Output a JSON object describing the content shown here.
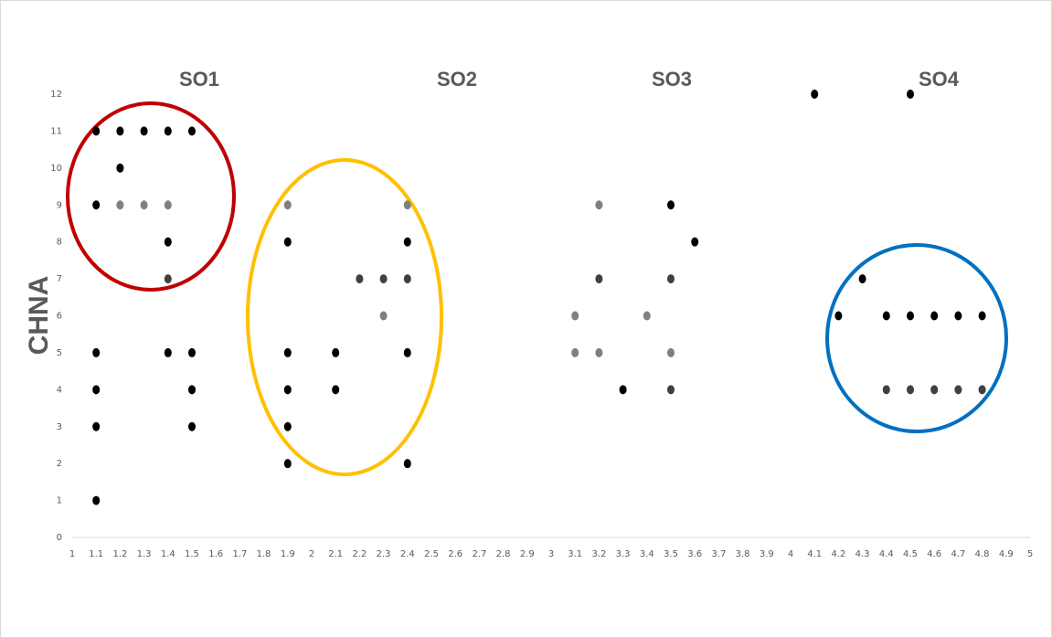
{
  "chart_data": {
    "type": "scatter",
    "annotations": [
      "SO1",
      "SO2",
      "SO3",
      "SO4"
    ],
    "y_label": "CHNA",
    "x": [
      1.1,
      1.1,
      1.1,
      1.1,
      1.1,
      1.1,
      1.2,
      1.2,
      1.2,
      1.3,
      1.3,
      1.4,
      1.4,
      1.4,
      1.4,
      1.4,
      1.5,
      1.5,
      1.5,
      1.5,
      1.9,
      1.9,
      1.9,
      1.9,
      1.9,
      1.9,
      2.1,
      2.1,
      2.2,
      2.3,
      2.3,
      2.4,
      2.4,
      2.4,
      2.4,
      2.4,
      3.1,
      3.1,
      3.2,
      3.2,
      3.2,
      3.3,
      3.4,
      3.5,
      3.5,
      3.5,
      3.5,
      3.6,
      4.1,
      4.2,
      4.3,
      4.4,
      4.4,
      4.5,
      4.5,
      4.5,
      4.6,
      4.6,
      4.7,
      4.7,
      4.8,
      4.8
    ],
    "y": [
      11,
      9,
      5,
      4,
      3,
      1,
      11,
      10,
      9,
      11,
      9,
      11,
      9,
      8,
      7,
      5,
      11,
      5,
      4,
      3,
      9,
      8,
      5,
      4,
      3,
      2,
      5,
      4,
      7,
      7,
      6,
      9,
      8,
      7,
      5,
      2,
      6,
      5,
      9,
      7,
      5,
      4,
      6,
      9,
      7,
      5,
      4,
      8,
      12,
      6,
      7,
      6,
      4,
      12,
      6,
      4,
      6,
      4,
      6,
      4,
      6,
      4
    ],
    "colors": [
      "#000000",
      "#000000",
      "#000000",
      "#000000",
      "#000000",
      "#000000",
      "#000000",
      "#000000",
      "#808080",
      "#000000",
      "#808080",
      "#000000",
      "#808080",
      "#000000",
      "#404040",
      "#000000",
      "#000000",
      "#000000",
      "#000000",
      "#000000",
      "#808080",
      "#000000",
      "#000000",
      "#000000",
      "#000000",
      "#000000",
      "#000000",
      "#000000",
      "#404040",
      "#404040",
      "#808080",
      "#808080",
      "#000000",
      "#404040",
      "#000000",
      "#000000",
      "#808080",
      "#808080",
      "#808080",
      "#404040",
      "#808080",
      "#000000",
      "#808080",
      "#000000",
      "#404040",
      "#808080",
      "#404040",
      "#000000",
      "#000000",
      "#000000",
      "#000000",
      "#000000",
      "#404040",
      "#000000",
      "#000000",
      "#404040",
      "#000000",
      "#404040",
      "#000000",
      "#404040",
      "#000000",
      "#404040"
    ],
    "xlim": [
      1,
      5
    ],
    "ylim": [
      0,
      12
    ],
    "xticks": [
      1,
      1.1,
      1.2,
      1.3,
      1.4,
      1.5,
      1.6,
      1.7,
      1.8,
      1.9,
      2,
      2.1,
      2.2,
      2.3,
      2.4,
      2.5,
      2.6,
      2.7,
      2.8,
      2.9,
      3,
      3.1,
      3.2,
      3.3,
      3.4,
      3.5,
      3.6,
      3.7,
      3.8,
      3.9,
      4,
      4.1,
      4.2,
      4.3,
      4.4,
      4.5,
      4.6,
      4.7,
      4.8,
      4.9,
      5
    ],
    "yticks": [
      0,
      1,
      2,
      3,
      4,
      5,
      6,
      7,
      8,
      9,
      10,
      11,
      12
    ]
  }
}
